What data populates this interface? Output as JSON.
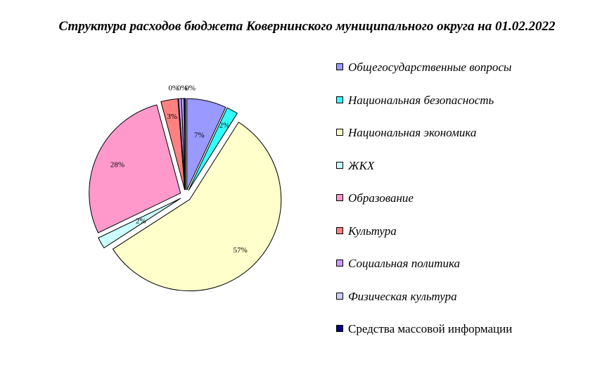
{
  "chart_data": {
    "type": "pie",
    "title": "Структура расходов бюджета Ковернинского муниципального округа на 01.02.2022",
    "legend_position": "right",
    "slices": [
      {
        "name": "Общегосударственные вопросы",
        "value": 7,
        "label": "7%",
        "color": "#9999ff"
      },
      {
        "name": "Национальная безопасность",
        "value": 2,
        "label": "2%",
        "color": "#33ffff"
      },
      {
        "name": "Национальная экономика",
        "value": 57,
        "label": "57%",
        "color": "#ffffcc"
      },
      {
        "name": "ЖКХ",
        "value": 2,
        "label": "2%",
        "color": "#ccffff"
      },
      {
        "name": "Образование",
        "value": 28,
        "label": "28%",
        "color": "#ff99cc"
      },
      {
        "name": "Культура",
        "value": 3,
        "label": "3%",
        "color": "#ff8080"
      },
      {
        "name": "Социальная политика",
        "value": 0.5,
        "label": "0%",
        "color": "#cc99ff"
      },
      {
        "name": "Физическая культура",
        "value": 0.4,
        "label": "0%",
        "color": "#ccccff"
      },
      {
        "name": "Средства массовой информации",
        "value": 0.3,
        "label": "0%",
        "color": "#000080"
      }
    ]
  }
}
